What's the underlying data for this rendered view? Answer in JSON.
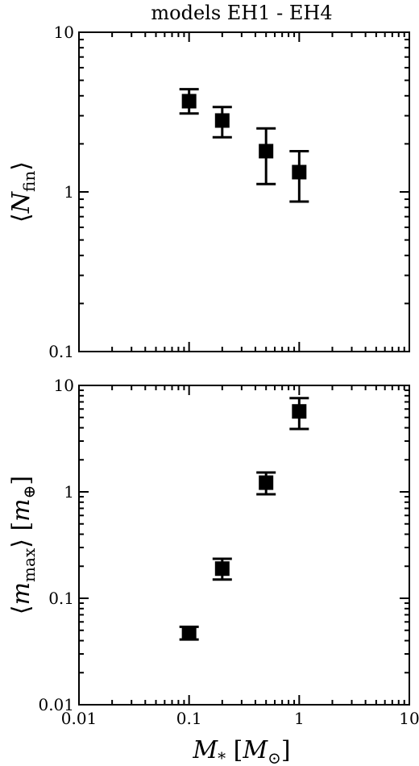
{
  "chart_data": [
    {
      "type": "scatter",
      "title": "models EH1 - EH4",
      "ylabel": "⟨N_fin⟩",
      "xlabel": "",
      "xscale": "log",
      "yscale": "log",
      "xlim": [
        0.01,
        10
      ],
      "ylim": [
        0.1,
        10
      ],
      "x_ticks": [
        "0.01",
        "0.1",
        "1",
        "10"
      ],
      "x_tick_labels_shown": false,
      "y_ticks": [
        "0.1",
        "1",
        "10"
      ],
      "series": [
        {
          "marker": "square",
          "color": "#000000",
          "points": [
            {
              "x": 0.1,
              "y": 3.7,
              "ylow": 3.1,
              "yhigh": 4.4
            },
            {
              "x": 0.2,
              "y": 2.8,
              "ylow": 2.2,
              "yhigh": 3.4
            },
            {
              "x": 0.5,
              "y": 1.8,
              "ylow": 1.12,
              "yhigh": 2.5
            },
            {
              "x": 1.0,
              "y": 1.33,
              "ylow": 0.87,
              "yhigh": 1.8
            }
          ]
        }
      ]
    },
    {
      "type": "scatter",
      "title": "",
      "ylabel": "⟨m_max⟩ [m_⊕]",
      "xlabel": "M_* [M_⊙]",
      "xscale": "log",
      "yscale": "log",
      "xlim": [
        0.01,
        10
      ],
      "ylim": [
        0.01,
        10
      ],
      "x_ticks": [
        "0.01",
        "0.1",
        "1",
        "10"
      ],
      "x_tick_labels_shown": true,
      "y_ticks": [
        "0.01",
        "0.1",
        "1",
        "10"
      ],
      "series": [
        {
          "marker": "square",
          "color": "#000000",
          "points": [
            {
              "x": 0.1,
              "y": 0.047,
              "ylow": 0.041,
              "yhigh": 0.054
            },
            {
              "x": 0.2,
              "y": 0.19,
              "ylow": 0.15,
              "yhigh": 0.235
            },
            {
              "x": 0.5,
              "y": 1.22,
              "ylow": 0.95,
              "yhigh": 1.52
            },
            {
              "x": 1.0,
              "y": 5.7,
              "ylow": 3.9,
              "yhigh": 7.6
            }
          ]
        }
      ]
    }
  ]
}
